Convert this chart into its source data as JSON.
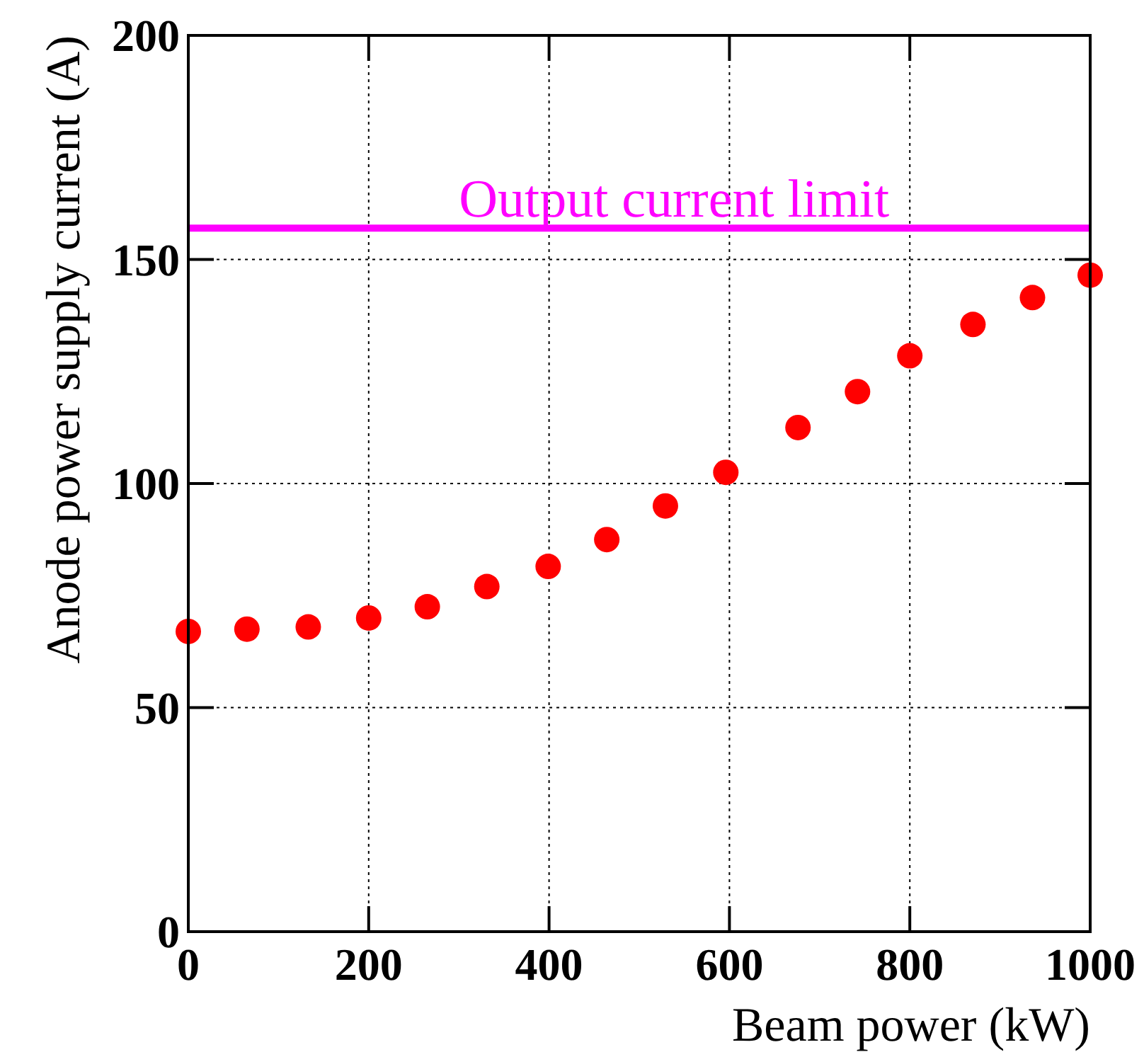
{
  "chart_data": {
    "type": "scatter",
    "xlabel": "Beam power (kW)",
    "ylabel": "Anode power supply current (A)",
    "x": [
      0,
      65,
      133,
      200,
      265,
      331,
      399,
      464,
      529,
      596,
      676,
      742,
      800,
      870,
      936,
      1000
    ],
    "series": [
      {
        "color": "#ff0000",
        "values": [
          67,
          67.5,
          68,
          70,
          72.5,
          77,
          81.5,
          87.5,
          95,
          102.5,
          112.5,
          120.5,
          128.5,
          135.5,
          141.5,
          146.5
        ]
      }
    ],
    "xlim": [
      0,
      1000
    ],
    "ylim": [
      0,
      200
    ],
    "xticks": [
      0,
      200,
      400,
      600,
      800,
      1000
    ],
    "yticks": [
      0,
      50,
      100,
      150,
      200
    ],
    "grid": true,
    "marker": "circle",
    "ref_lines": [
      {
        "axis": "y",
        "value": 157,
        "label": "Output current limit",
        "color": "#ff00ff"
      }
    ]
  }
}
